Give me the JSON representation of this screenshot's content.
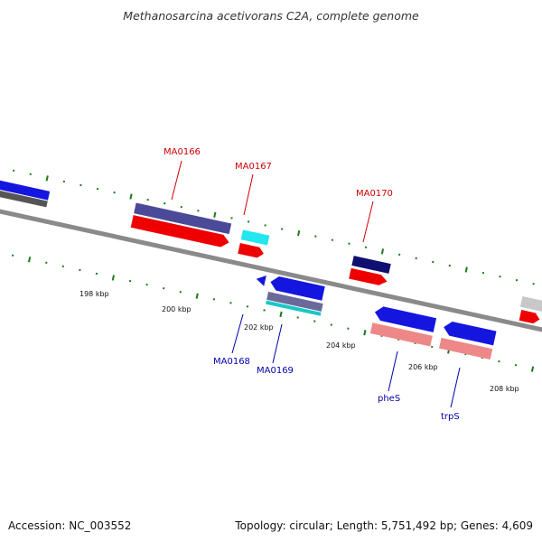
{
  "title": "Methanosarcina acetivorans C2A, complete genome",
  "footer": {
    "accession": "Accession: NC_003552",
    "summary": "Topology: circular; Length: 5,751,492 bp; Genes: 4,609"
  },
  "colors": {
    "backbone": "#888888",
    "tick": "#1c7a1c",
    "label_forward": "#cc0000",
    "label_reverse": "#0000aa",
    "scale_text": "#111111"
  },
  "scale_labels": [
    "198 kbp",
    "200 kbp",
    "202 kbp",
    "204 kbp",
    "206 kbp",
    "208 kbp"
  ],
  "gene_labels": {
    "forward": [
      "MA0166",
      "MA0167",
      "MA0170"
    ],
    "reverse": [
      "MA0168",
      "MA0169",
      "pheS",
      "trpS"
    ]
  }
}
